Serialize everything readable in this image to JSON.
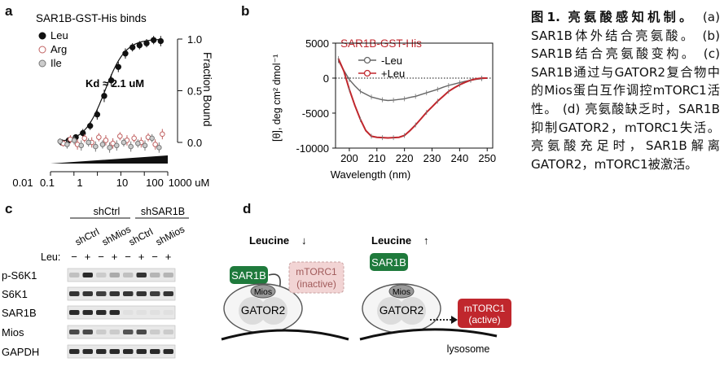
{
  "panels": {
    "a": {
      "letter": "a",
      "chart_data": {
        "type": "scatter",
        "title": "SAR1B-GST-His binds",
        "ylabel": "Fraction Bound",
        "xscale": "log",
        "xlim": [
          0.01,
          1000
        ],
        "ylim": [
          -0.2,
          1.2
        ],
        "x_ticks": [
          "0.01",
          "0.1",
          "1",
          "10",
          "100",
          "1000 uM"
        ],
        "y_ticks": [
          "1.0",
          "0.5",
          "0.0"
        ],
        "y_tick_values": [
          1.0,
          0.5,
          0.0
        ],
        "annotation": "Kd ≈ 2.1 uM",
        "legend_position": "top-left",
        "series": [
          {
            "name": "Leu",
            "color": "#111111",
            "fill": "#111111",
            "x": [
              0.03,
              0.06,
              0.12,
              0.24,
              0.49,
              0.98,
              1.95,
              3.9,
              7.8,
              15.6,
              31.3,
              62.5,
              125,
              250,
              500
            ],
            "y": [
              0.0,
              0.02,
              0.05,
              0.09,
              0.16,
              0.27,
              0.45,
              0.6,
              0.73,
              0.86,
              0.92,
              0.94,
              0.96,
              0.99,
              0.98
            ],
            "err": [
              0.02,
              0.03,
              0.03,
              0.04,
              0.04,
              0.05,
              0.06,
              0.06,
              0.05,
              0.05,
              0.04,
              0.04,
              0.04,
              0.04,
              0.05
            ]
          },
          {
            "name": "Arg",
            "color": "#c06060",
            "fill": "#ffffff",
            "x": [
              0.03,
              0.06,
              0.12,
              0.24,
              0.49,
              0.98,
              1.95,
              3.9,
              7.8,
              15.6,
              31.3,
              62.5,
              125,
              250,
              500
            ],
            "y": [
              -0.01,
              0.03,
              -0.02,
              0.04,
              0.0,
              0.05,
              0.02,
              -0.01,
              0.06,
              0.02,
              0.04,
              0.0,
              0.05,
              -0.02,
              0.08
            ],
            "err": [
              0.03,
              0.04,
              0.05,
              0.04,
              0.05,
              0.04,
              0.05,
              0.05,
              0.04,
              0.05,
              0.04,
              0.05,
              0.04,
              0.05,
              0.05
            ]
          },
          {
            "name": "Ile",
            "color": "#777777",
            "fill": "#cccccc",
            "x": [
              0.03,
              0.06,
              0.12,
              0.24,
              0.49,
              0.98,
              1.95,
              3.9,
              7.8,
              15.6,
              31.3,
              62.5,
              125,
              250,
              500
            ],
            "y": [
              0.01,
              -0.02,
              0.02,
              -0.03,
              0.0,
              -0.04,
              -0.02,
              -0.05,
              -0.03,
              0.0,
              -0.04,
              -0.01,
              -0.03,
              0.04,
              -0.05
            ],
            "err": [
              0.03,
              0.04,
              0.04,
              0.05,
              0.04,
              0.05,
              0.04,
              0.05,
              0.05,
              0.04,
              0.05,
              0.04,
              0.05,
              0.04,
              0.05
            ]
          }
        ],
        "fit": {
          "type": "hill",
          "kd": 2.1,
          "n": 1.0,
          "bottom": 0.0,
          "top": 1.0
        }
      }
    },
    "b": {
      "letter": "b",
      "chart_data": {
        "type": "line",
        "title": "SAR1B-GST-His",
        "xlabel": "Wavelength (nm)",
        "ylabel": "[θ], deg cm² dmol⁻¹",
        "xlim": [
          195,
          252
        ],
        "ylim": [
          -10000,
          5000
        ],
        "x_ticks": [
          200,
          210,
          220,
          230,
          240,
          250
        ],
        "y_ticks": [
          "5000",
          "0",
          "-5000",
          "-10000"
        ],
        "y_tick_values": [
          5000,
          0,
          -5000,
          -10000
        ],
        "zero_line": "dotted",
        "legend_position": "top-right",
        "series": [
          {
            "name": "-Leu",
            "color": "#666666",
            "x": [
              196,
              198,
              200,
              202,
              204,
              206,
              208,
              210,
              212,
              214,
              216,
              218,
              220,
              222,
              224,
              226,
              228,
              230,
              232,
              234,
              236,
              238,
              240,
              242,
              244,
              246,
              248,
              250
            ],
            "y": [
              2500,
              1100,
              -200,
              -1100,
              -1900,
              -2300,
              -2700,
              -2900,
              -3100,
              -3200,
              -3150,
              -3050,
              -2950,
              -2750,
              -2600,
              -2350,
              -2100,
              -1850,
              -1600,
              -1300,
              -1050,
              -850,
              -650,
              -450,
              -300,
              -180,
              -80,
              0
            ]
          },
          {
            "name": "+Leu",
            "color": "#c0272d",
            "x": [
              196,
              198,
              200,
              202,
              204,
              206,
              208,
              210,
              212,
              214,
              216,
              218,
              220,
              222,
              224,
              226,
              228,
              230,
              232,
              234,
              236,
              238,
              240,
              242,
              244,
              246,
              248,
              250
            ],
            "y": [
              2800,
              1000,
              -1600,
              -3900,
              -5900,
              -7500,
              -8300,
              -8450,
              -8500,
              -8550,
              -8500,
              -8450,
              -8200,
              -7500,
              -6700,
              -5800,
              -4900,
              -4100,
              -3300,
              -2600,
              -1900,
              -1400,
              -950,
              -600,
              -300,
              -100,
              0,
              0
            ]
          }
        ]
      }
    },
    "c": {
      "letter": "c",
      "groups": [
        "shCtrl",
        "shSAR1B"
      ],
      "conditions": [
        "shCtrl",
        "shMios",
        "shCtrl",
        "shMios"
      ],
      "leu_label": "Leu:",
      "lanes": [
        "−",
        "+",
        "−",
        "+",
        "−",
        "+",
        "−",
        "+"
      ],
      "rows": [
        {
          "label": "p-S6K1",
          "intensity": [
            0.2,
            0.9,
            0.15,
            0.3,
            0.2,
            0.85,
            0.25,
            0.25
          ]
        },
        {
          "label": "S6K1",
          "intensity": [
            0.85,
            0.85,
            0.8,
            0.85,
            0.85,
            0.85,
            0.8,
            0.85
          ]
        },
        {
          "label": "SAR1B",
          "intensity": [
            0.9,
            0.9,
            0.9,
            0.9,
            0.05,
            0.05,
            0.05,
            0.05
          ]
        },
        {
          "label": "Mios",
          "intensity": [
            0.75,
            0.75,
            0.15,
            0.15,
            0.7,
            0.75,
            0.15,
            0.15
          ]
        },
        {
          "label": "GAPDH",
          "intensity": [
            0.9,
            0.9,
            0.9,
            0.9,
            0.9,
            0.9,
            0.9,
            0.9
          ]
        }
      ]
    },
    "d": {
      "letter": "d",
      "left": {
        "title": "Leucine",
        "arrow": "↓",
        "sar1b": "SAR1B",
        "mios": "Mios",
        "gator2": "GATOR2",
        "mtorc1_l1": "mTORC1",
        "mtorc1_l2": "(inactive)"
      },
      "right": {
        "title": "Leucine",
        "arrow": "↑",
        "sar1b": "SAR1B",
        "mios": "Mios",
        "gator2": "GATOR2",
        "mtorc1_l1": "mTORC1",
        "mtorc1_l2": "(active)"
      },
      "lysosome": "lysosome",
      "colors": {
        "sar1b": "#1f7a3c",
        "mtorc1_active": "#c0272d",
        "mtorc1_inactive": "#f2d4d4",
        "gator2": "#d6d6d6"
      }
    }
  },
  "caption": {
    "title": "图1. 亮氨酸感知机制。",
    "lines": [
      "(a) SAR1B体外结合亮氨酸。",
      "(b) SAR1B结合亮氨酸变构。",
      "(c) SAR1B通过与GATOR2复合物中的Mios蛋白互作调控mTORC1活性。",
      "(d) 亮氨酸缺乏时，SAR1B抑制GATOR2，mTORC1失活。亮氨酸充足时，SAR1B解离 GATOR2，mTORC1被激活。"
    ]
  }
}
